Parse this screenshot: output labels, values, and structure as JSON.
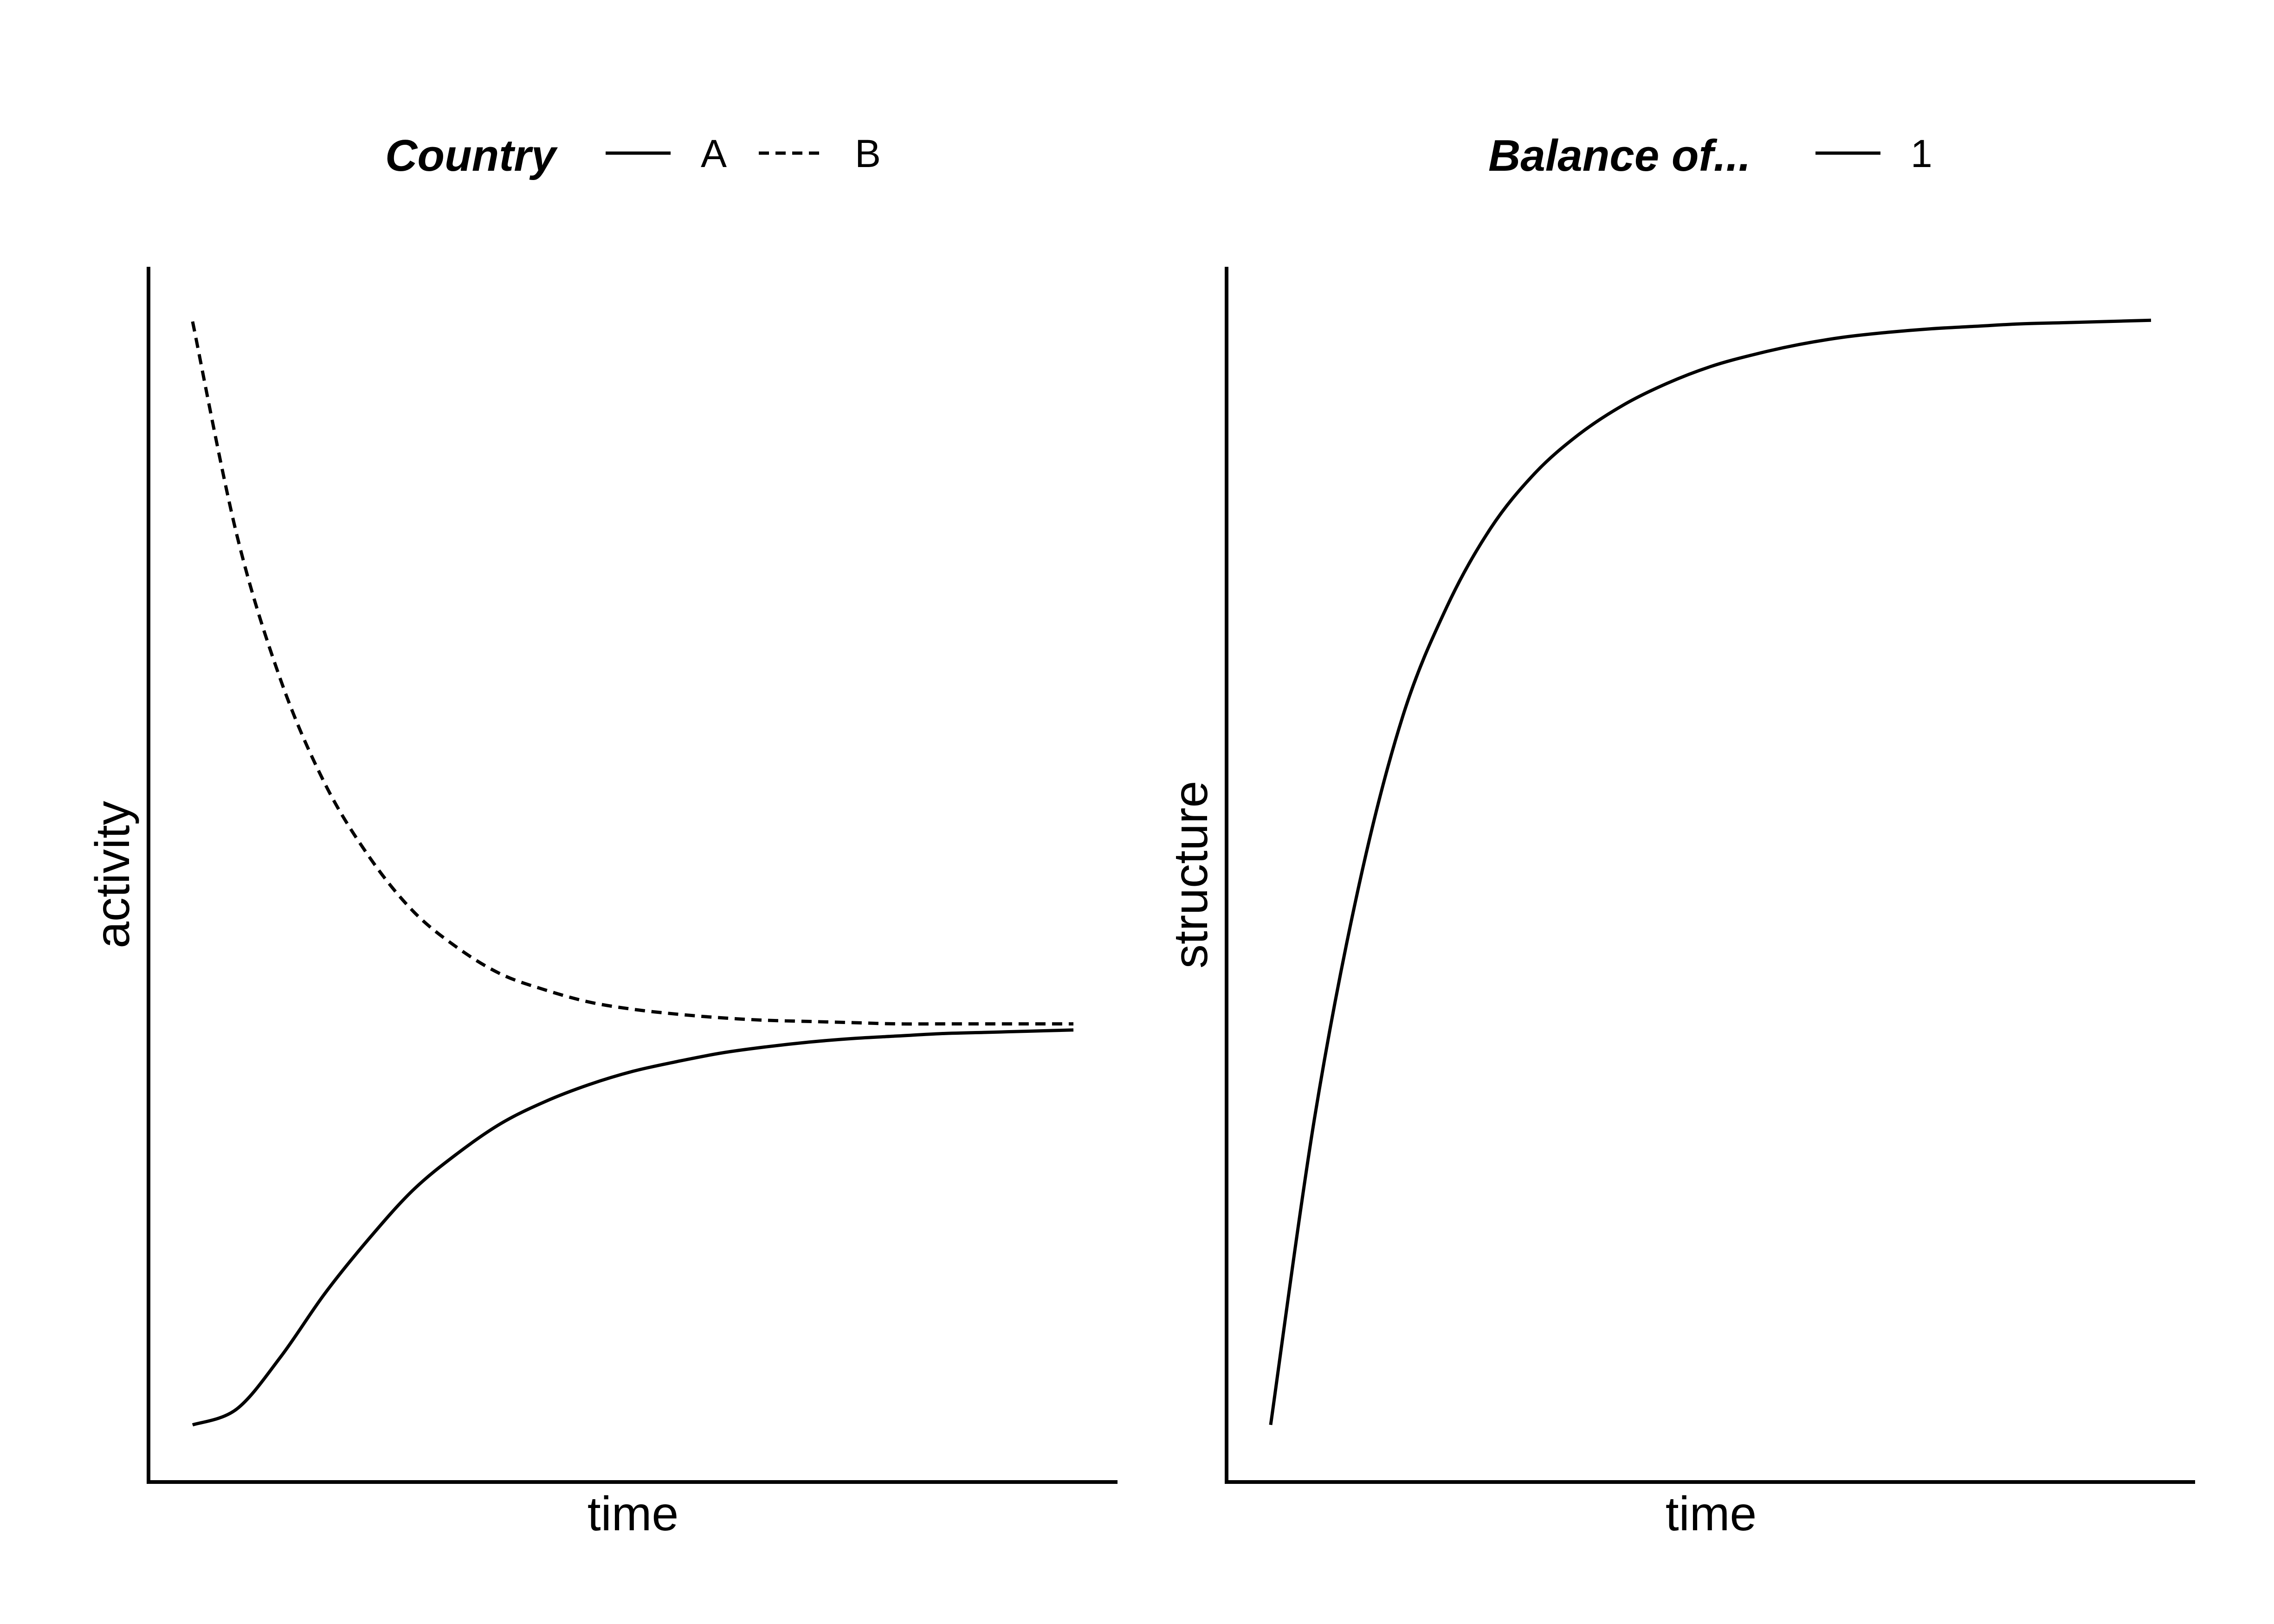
{
  "chart_data": [
    {
      "type": "line",
      "title": "",
      "xlabel": "time",
      "ylabel": "activity",
      "xlim": [
        0,
        1
      ],
      "ylim": [
        0,
        1
      ],
      "axis_ticks": "none",
      "grid": false,
      "legend": {
        "title": "Country",
        "placement": "top",
        "entries": [
          {
            "label": "A",
            "linetype": "solid"
          },
          {
            "label": "B",
            "linetype": "dashed"
          }
        ]
      },
      "series": [
        {
          "name": "A",
          "linetype": "solid",
          "color": "#000000",
          "x": [
            0.0,
            0.05,
            0.1,
            0.15,
            0.2,
            0.25,
            0.3,
            0.35,
            0.4,
            0.45,
            0.5,
            0.55,
            0.6,
            0.65,
            0.7,
            0.75,
            0.8,
            0.85,
            0.9,
            0.95,
            1.0
          ],
          "y": [
            0.047,
            0.06,
            0.103,
            0.155,
            0.2,
            0.24,
            0.27,
            0.295,
            0.313,
            0.327,
            0.338,
            0.346,
            0.353,
            0.358,
            0.362,
            0.365,
            0.367,
            0.369,
            0.37,
            0.371,
            0.372
          ]
        },
        {
          "name": "B",
          "linetype": "dashed",
          "color": "#000000",
          "x": [
            0.0,
            0.05,
            0.1,
            0.15,
            0.2,
            0.25,
            0.3,
            0.35,
            0.4,
            0.45,
            0.5,
            0.55,
            0.6,
            0.65,
            0.7,
            0.75,
            0.8,
            0.85,
            0.9,
            0.95,
            1.0
          ],
          "y": [
            0.955,
            0.78,
            0.66,
            0.575,
            0.515,
            0.47,
            0.44,
            0.418,
            0.405,
            0.395,
            0.389,
            0.385,
            0.382,
            0.38,
            0.379,
            0.378,
            0.377,
            0.377,
            0.377,
            0.377,
            0.377
          ]
        }
      ]
    },
    {
      "type": "line",
      "title": "",
      "xlabel": "time",
      "ylabel": "structure",
      "xlim": [
        0,
        1
      ],
      "ylim": [
        0,
        1
      ],
      "axis_ticks": "none",
      "grid": false,
      "legend": {
        "title": "Balance of...",
        "placement": "top",
        "entries": [
          {
            "label": "1",
            "linetype": "solid"
          }
        ]
      },
      "series": [
        {
          "name": "1",
          "linetype": "solid",
          "color": "#000000",
          "x": [
            0.0,
            0.05,
            0.1,
            0.15,
            0.2,
            0.25,
            0.3,
            0.35,
            0.4,
            0.45,
            0.5,
            0.55,
            0.6,
            0.65,
            0.7,
            0.75,
            0.8,
            0.85,
            0.9,
            0.95,
            1.0
          ],
          "y": [
            0.047,
            0.3,
            0.49,
            0.63,
            0.72,
            0.785,
            0.83,
            0.862,
            0.886,
            0.904,
            0.918,
            0.928,
            0.936,
            0.942,
            0.946,
            0.949,
            0.951,
            0.953,
            0.954,
            0.955,
            0.956
          ]
        }
      ]
    }
  ]
}
